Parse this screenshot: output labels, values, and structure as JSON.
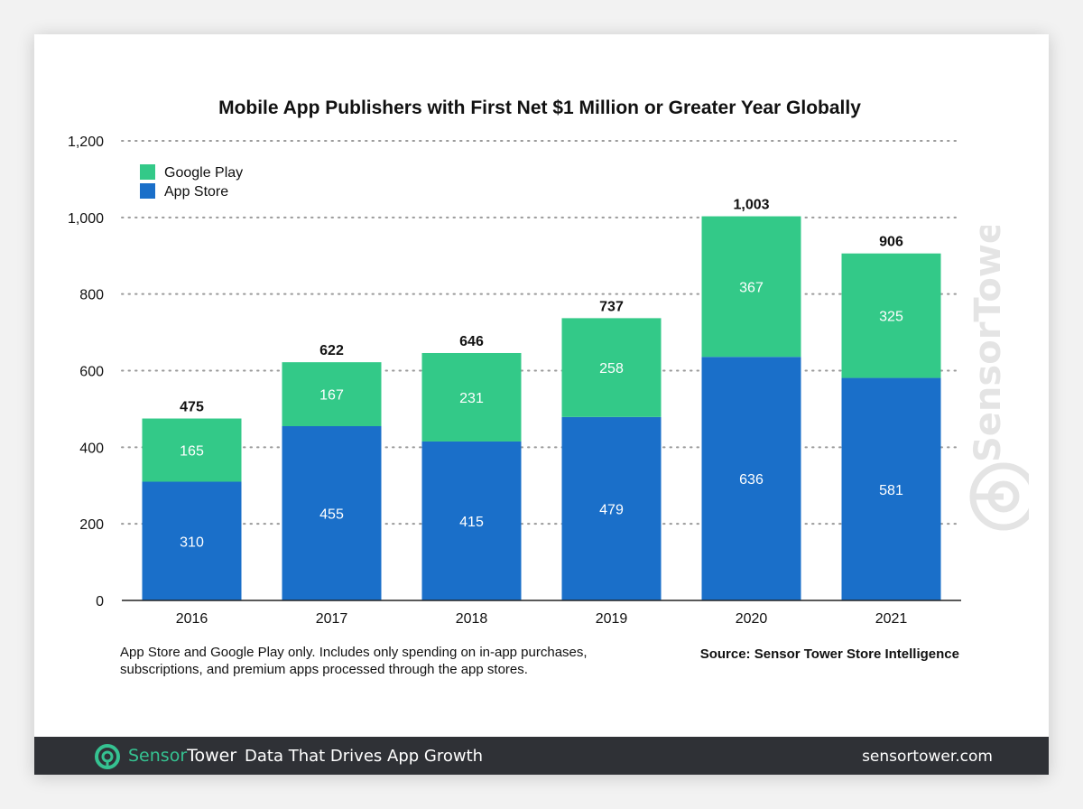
{
  "chart_data": {
    "type": "bar",
    "stacked": true,
    "title": "Mobile App Publishers with First Net $1 Million or Greater Year Globally",
    "categories": [
      "2016",
      "2017",
      "2018",
      "2019",
      "2020",
      "2021"
    ],
    "series": [
      {
        "name": "App Store",
        "values": [
          310,
          455,
          415,
          479,
          636,
          581
        ],
        "color": "#1a6fc9"
      },
      {
        "name": "Google Play",
        "values": [
          165,
          167,
          231,
          258,
          367,
          325
        ],
        "color": "#33c988"
      }
    ],
    "totals": [
      "475",
      "622",
      "646",
      "737",
      "1,003",
      "906"
    ],
    "ylim": [
      0,
      1200
    ],
    "yticks": [
      "0",
      "200",
      "400",
      "600",
      "800",
      "1,000",
      "1,200"
    ],
    "ytick_values": [
      0,
      200,
      400,
      600,
      800,
      1000,
      1200
    ],
    "legend_order": [
      "Google Play",
      "App Store"
    ],
    "legend_position": "top-left",
    "grid": "dotted horizontal"
  },
  "notes": {
    "disclaimer_line1": "App Store and Google Play only. Includes only spending on in-app purchases,",
    "disclaimer_line2": "subscriptions, and premium apps processed through the app stores.",
    "source": "Source: Sensor Tower Store Intelligence"
  },
  "footer": {
    "brand_part1": "Sensor",
    "brand_part2": "Tower",
    "tagline": "Data That Drives App Growth",
    "url": "sensortower.com",
    "logo_color": "#35c291",
    "background": "#2f3136"
  },
  "watermark": {
    "text": "SensorTower"
  }
}
